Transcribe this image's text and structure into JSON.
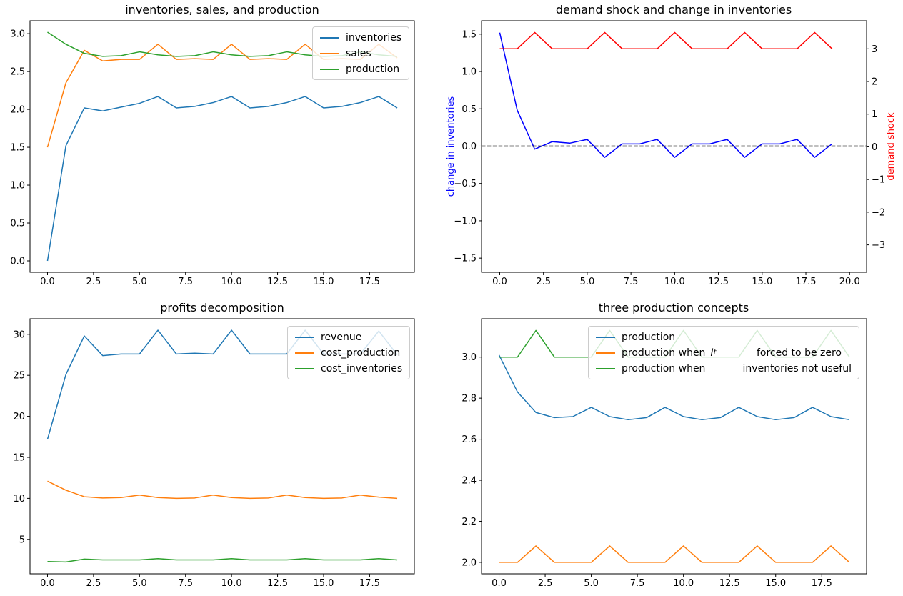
{
  "figure": {
    "background": "#ffffff"
  },
  "colors": {
    "mpl_blue": "#1f77b4",
    "mpl_orange": "#ff7f0e",
    "mpl_green": "#2ca02c",
    "pure_blue": "#0000ff",
    "pure_red": "#ff0000",
    "black": "#000000"
  },
  "chart_data": [
    {
      "type": "line",
      "title": "inventories, sales, and production",
      "x": [
        0,
        1,
        2,
        3,
        4,
        5,
        6,
        7,
        8,
        9,
        10,
        11,
        12,
        13,
        14,
        15,
        16,
        17,
        18,
        19
      ],
      "series": [
        {
          "name": "inventories",
          "color": "#1f77b4",
          "values": [
            0.0,
            1.52,
            2.02,
            1.98,
            2.03,
            2.08,
            2.17,
            2.02,
            2.04,
            2.09,
            2.17,
            2.02,
            2.04,
            2.09,
            2.17,
            2.02,
            2.04,
            2.09,
            2.17,
            2.02
          ]
        },
        {
          "name": "sales",
          "color": "#ff7f0e",
          "values": [
            1.5,
            2.35,
            2.78,
            2.64,
            2.66,
            2.66,
            2.86,
            2.66,
            2.67,
            2.66,
            2.86,
            2.66,
            2.67,
            2.66,
            2.86,
            2.66,
            2.67,
            2.66,
            2.86,
            2.68
          ]
        },
        {
          "name": "production",
          "color": "#2ca02c",
          "values": [
            3.02,
            2.86,
            2.74,
            2.7,
            2.71,
            2.76,
            2.72,
            2.7,
            2.71,
            2.76,
            2.72,
            2.7,
            2.71,
            2.76,
            2.72,
            2.7,
            2.71,
            2.76,
            2.72,
            2.7
          ]
        }
      ],
      "xlim": [
        -0.95,
        19.93
      ],
      "ylim": [
        -0.151,
        3.171
      ],
      "xtick_values": [
        0,
        2.5,
        5,
        7.5,
        10,
        12.5,
        15,
        17.5
      ],
      "xtick_labels": [
        "0.0",
        "2.5",
        "5.0",
        "7.5",
        "10.0",
        "12.5",
        "15.0",
        "17.5"
      ],
      "ytick_values": [
        0,
        0.5,
        1.0,
        1.5,
        2.0,
        2.5,
        3.0
      ],
      "ytick_labels": [
        "0.0",
        "0.5",
        "1.0",
        "1.5",
        "2.0",
        "2.5",
        "3.0"
      ],
      "grid": false,
      "legend_position": "top-right"
    },
    {
      "type": "line",
      "title": "demand shock and change in inventories",
      "x": [
        0,
        1,
        2,
        3,
        4,
        5,
        6,
        7,
        8,
        9,
        10,
        11,
        12,
        13,
        14,
        15,
        16,
        17,
        18,
        19
      ],
      "series": [
        {
          "name": "change in inventories",
          "color": "#0000ff",
          "axis": "left",
          "values": [
            1.52,
            0.48,
            -0.04,
            0.06,
            0.04,
            0.09,
            -0.15,
            0.03,
            0.03,
            0.09,
            -0.15,
            0.03,
            0.03,
            0.09,
            -0.15,
            0.03,
            0.03,
            0.09,
            -0.15,
            0.03
          ]
        },
        {
          "name": "demand shock",
          "color": "#ff0000",
          "axis": "right",
          "values": [
            3,
            3,
            3.5,
            3,
            3,
            3,
            3.5,
            3,
            3,
            3,
            3.5,
            3,
            3,
            3,
            3.5,
            3,
            3,
            3,
            3.5,
            3
          ]
        }
      ],
      "hline": {
        "y": 0,
        "style": "dashed",
        "color": "#000000"
      },
      "xlim": [
        -1.04,
        20.97
      ],
      "ylim": [
        -1.69,
        1.68
      ],
      "ylim_right": [
        -3.84,
        3.86
      ],
      "xtick_values": [
        0,
        2.5,
        5,
        7.5,
        10,
        12.5,
        15,
        17.5,
        20
      ],
      "xtick_labels": [
        "0.0",
        "2.5",
        "5.0",
        "7.5",
        "10.0",
        "12.5",
        "15.0",
        "17.5",
        "20.0"
      ],
      "ytick_values": [
        -1.5,
        -1.0,
        -0.5,
        0,
        0.5,
        1.0,
        1.5
      ],
      "ytick_labels": [
        "−1.5",
        "−1.0",
        "−0.5",
        "0.0",
        "0.5",
        "1.0",
        "1.5"
      ],
      "ytick_values_right": [
        3,
        2,
        1,
        0,
        -1,
        -2,
        -3
      ],
      "ytick_labels_right": [
        "3",
        "2",
        "1",
        "0",
        "−1",
        "−2",
        "−3"
      ],
      "ylabel_left": "change in inventories",
      "ylabel_left_color": "#0000ff",
      "ylabel_right": "demand shock",
      "ylabel_right_color": "#ff0000",
      "grid": false
    },
    {
      "type": "line",
      "title": "profits decomposition",
      "x": [
        0,
        1,
        2,
        3,
        4,
        5,
        6,
        7,
        8,
        9,
        10,
        11,
        12,
        13,
        14,
        15,
        16,
        17,
        18,
        19
      ],
      "series": [
        {
          "name": "revenue",
          "color": "#1f77b4",
          "values": [
            17.2,
            25.1,
            29.8,
            27.4,
            27.6,
            27.6,
            30.5,
            27.6,
            27.7,
            27.6,
            30.5,
            27.6,
            27.6,
            27.6,
            30.5,
            27.6,
            27.6,
            27.6,
            30.4,
            27.5
          ]
        },
        {
          "name": "cost_production",
          "color": "#ff7f0e",
          "values": [
            12.1,
            11.0,
            10.2,
            10.05,
            10.1,
            10.4,
            10.1,
            10.0,
            10.05,
            10.4,
            10.1,
            10.0,
            10.05,
            10.4,
            10.1,
            10.0,
            10.05,
            10.4,
            10.15,
            10.0
          ]
        },
        {
          "name": "cost_inventories",
          "color": "#2ca02c",
          "values": [
            2.3,
            2.25,
            2.6,
            2.5,
            2.5,
            2.5,
            2.65,
            2.5,
            2.5,
            2.5,
            2.65,
            2.5,
            2.5,
            2.5,
            2.65,
            2.5,
            2.5,
            2.5,
            2.65,
            2.5
          ]
        }
      ],
      "xlim": [
        -0.95,
        19.93
      ],
      "ylim": [
        0.8,
        31.9
      ],
      "xtick_values": [
        0,
        2.5,
        5,
        7.5,
        10,
        12.5,
        15,
        17.5
      ],
      "xtick_labels": [
        "0.0",
        "2.5",
        "5.0",
        "7.5",
        "10.0",
        "12.5",
        "15.0",
        "17.5"
      ],
      "ytick_values": [
        5,
        10,
        15,
        20,
        25,
        30
      ],
      "ytick_labels": [
        "5",
        "10",
        "15",
        "20",
        "25",
        "30"
      ],
      "grid": false,
      "legend_position": "top-right"
    },
    {
      "type": "line",
      "title": "three production concepts",
      "x": [
        0,
        1,
        2,
        3,
        4,
        5,
        6,
        7,
        8,
        9,
        10,
        11,
        12,
        13,
        14,
        15,
        16,
        17,
        18,
        19
      ],
      "series": [
        {
          "name": "production",
          "color": "#1f77b4",
          "values": [
            3.01,
            2.83,
            2.73,
            2.705,
            2.71,
            2.755,
            2.71,
            2.695,
            2.705,
            2.755,
            2.71,
            2.695,
            2.705,
            2.755,
            2.71,
            2.695,
            2.705,
            2.755,
            2.71,
            2.695
          ]
        },
        {
          "name": "production when I_t forced to be zero",
          "color": "#ff7f0e",
          "values": [
            2.0,
            2.0,
            2.08,
            2.0,
            2.0,
            2.0,
            2.08,
            2.0,
            2.0,
            2.0,
            2.08,
            2.0,
            2.0,
            2.0,
            2.08,
            2.0,
            2.0,
            2.0,
            2.08,
            2.0
          ]
        },
        {
          "name": "production when inventories not useful",
          "color": "#2ca02c",
          "values": [
            3.0,
            3.0,
            3.13,
            3.0,
            3.0,
            3.0,
            3.13,
            3.0,
            3.0,
            3.0,
            3.13,
            3.0,
            3.0,
            3.0,
            3.13,
            3.0,
            3.0,
            3.0,
            3.13,
            3.0
          ]
        }
      ],
      "legend_rows": [
        {
          "text": "production"
        },
        {
          "pre": "production when",
          "math_var": "I",
          "math_sub": "t",
          "post": "forced to be zero"
        },
        {
          "pre": "production when",
          "post": "inventories not useful"
        }
      ],
      "xlim": [
        -0.95,
        19.93
      ],
      "ylim": [
        1.944,
        3.187
      ],
      "xtick_values": [
        0,
        2.5,
        5,
        7.5,
        10,
        12.5,
        15,
        17.5
      ],
      "xtick_labels": [
        "0.0",
        "2.5",
        "5.0",
        "7.5",
        "10.0",
        "12.5",
        "15.0",
        "17.5"
      ],
      "ytick_values": [
        2.0,
        2.2,
        2.4,
        2.6,
        2.8,
        3.0
      ],
      "ytick_labels": [
        "2.0",
        "2.2",
        "2.4",
        "2.6",
        "2.8",
        "3.0"
      ],
      "grid": false,
      "legend_position": "top-right"
    }
  ]
}
